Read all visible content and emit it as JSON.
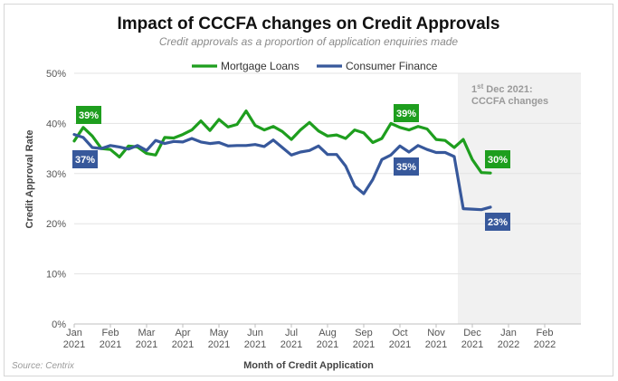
{
  "chart_data": {
    "type": "line",
    "title": "Impact of CCCFA changes on Credit Approvals",
    "subtitle": "Credit approvals as a proportion of application enquiries made",
    "xlabel": "Month of Credit Application",
    "ylabel": "Credit Approval Rate",
    "ylim": [
      0,
      50
    ],
    "yticks": [
      "0%",
      "10%",
      "20%",
      "30%",
      "40%",
      "50%"
    ],
    "x_categories": [
      {
        "month": "Jan",
        "year": "2021"
      },
      {
        "month": "Feb",
        "year": "2021"
      },
      {
        "month": "Mar",
        "year": "2021"
      },
      {
        "month": "Apr",
        "year": "2021"
      },
      {
        "month": "May",
        "year": "2021"
      },
      {
        "month": "Jun",
        "year": "2021"
      },
      {
        "month": "Jul",
        "year": "2021"
      },
      {
        "month": "Aug",
        "year": "2021"
      },
      {
        "month": "Sep",
        "year": "2021"
      },
      {
        "month": "Oct",
        "year": "2021"
      },
      {
        "month": "Nov",
        "year": "2021"
      },
      {
        "month": "Dec",
        "year": "2021"
      },
      {
        "month": "Jan",
        "year": "2022"
      },
      {
        "month": "Feb",
        "year": "2022"
      }
    ],
    "legend": {
      "position": "top-center"
    },
    "source": "Source: Centrix",
    "series": [
      {
        "name": "Mortgage Loans",
        "color": "#1e9e1e",
        "x": [
          0,
          0.25,
          0.5,
          0.75,
          1,
          1.25,
          1.5,
          1.75,
          2,
          2.25,
          2.5,
          2.75,
          3,
          3.25,
          3.5,
          3.75,
          4,
          4.25,
          4.5,
          4.75,
          5,
          5.25,
          5.5,
          5.75,
          6,
          6.25,
          6.5,
          6.75,
          7,
          7.25,
          7.5,
          7.75,
          8,
          8.25,
          8.5,
          8.75,
          9,
          9.25,
          9.5,
          9.75,
          10,
          10.25,
          10.5,
          10.75,
          11,
          11.25,
          11.5
        ],
        "values": [
          36.5,
          39.2,
          37.5,
          35.0,
          34.8,
          33.3,
          35.5,
          35.3,
          34.0,
          33.7,
          37.2,
          37.1,
          37.8,
          38.7,
          40.5,
          38.6,
          40.8,
          39.3,
          39.8,
          42.5,
          39.6,
          38.7,
          39.4,
          38.4,
          36.8,
          38.7,
          40.2,
          38.5,
          37.5,
          37.7,
          37.0,
          38.7,
          38.1,
          36.2,
          37.0,
          40.0,
          39.2,
          38.7,
          39.4,
          38.9,
          36.8,
          36.6,
          35.2,
          36.8,
          32.8,
          30.2,
          30.1
        ]
      },
      {
        "name": "Consumer Finance",
        "color": "#37589b",
        "x": [
          0,
          0.25,
          0.5,
          0.75,
          1,
          1.25,
          1.5,
          1.75,
          2,
          2.25,
          2.5,
          2.75,
          3,
          3.25,
          3.5,
          3.75,
          4,
          4.25,
          4.5,
          4.75,
          5,
          5.25,
          5.5,
          5.75,
          6,
          6.25,
          6.5,
          6.75,
          7,
          7.25,
          7.5,
          7.75,
          8,
          8.25,
          8.5,
          8.75,
          9,
          9.25,
          9.5,
          9.75,
          10,
          10.25,
          10.5,
          10.75,
          11,
          11.25,
          11.5
        ],
        "values": [
          37.8,
          37.2,
          35.2,
          35.0,
          35.6,
          35.3,
          34.9,
          35.6,
          34.6,
          36.6,
          36.0,
          36.4,
          36.3,
          37.0,
          36.3,
          36.0,
          36.2,
          35.5,
          35.6,
          35.6,
          35.8,
          35.4,
          36.7,
          35.2,
          33.7,
          34.3,
          34.6,
          35.5,
          33.8,
          33.8,
          31.5,
          27.5,
          26.0,
          28.8,
          32.8,
          33.7,
          35.5,
          34.3,
          35.6,
          34.8,
          34.2,
          34.2,
          33.4,
          23.0,
          22.9,
          22.8,
          23.3
        ]
      }
    ],
    "data_labels": [
      {
        "series": 0,
        "text": "39%",
        "color": "#1e9e1e"
      },
      {
        "series": 1,
        "text": "37%",
        "color": "#37589b"
      },
      {
        "series": 0,
        "text": "39%",
        "color": "#1e9e1e"
      },
      {
        "series": 1,
        "text": "35%",
        "color": "#37589b"
      },
      {
        "series": 0,
        "text": "30%",
        "color": "#1e9e1e"
      },
      {
        "series": 1,
        "text": "23%",
        "color": "#37589b"
      }
    ],
    "annotation": {
      "line1": "1",
      "line1_sup": "st",
      "line1_rest": " Dec 2021:",
      "line2": "CCCFA changes",
      "x_start": 10.6,
      "x_end": 14,
      "shade_color": "#f1f1f1"
    }
  }
}
